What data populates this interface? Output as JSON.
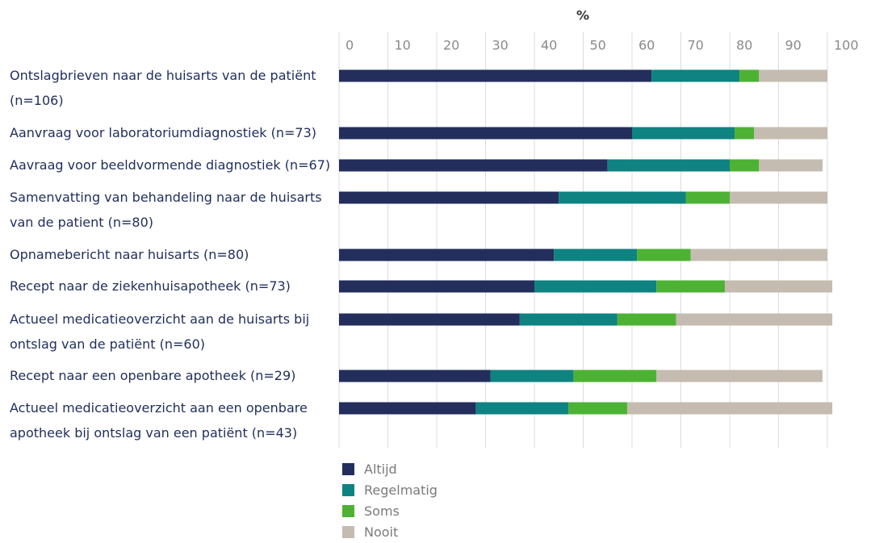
{
  "chart_data": {
    "type": "stacked-bar-horizontal",
    "title": "%",
    "categories": [
      "Ontslagbrieven naar de huisarts van de patiënt (n=106)",
      "Aanvraag voor laboratoriumdiagnostiek (n=73)",
      "Aavraag voor beeldvormende diagnostiek (n=67)",
      "Samenvatting van behandeling naar de huisarts van de patient (n=80)",
      "Opnamebericht naar huisarts (n=80)",
      "Recept naar de ziekenhuisapotheek (n=73)",
      "Actueel medicatieoverzicht aan de huisarts bij ontslag van de patiënt (n=60)",
      "Recept naar een openbare apotheek (n=29)",
      "Actueel medicatieoverzicht aan een openbare apotheek bij ontslag van een patiënt (n=43)"
    ],
    "series": [
      {
        "name": "Altijd",
        "color": "#232e5c",
        "values": [
          64,
          60,
          55,
          45,
          44,
          40,
          37,
          31,
          28
        ]
      },
      {
        "name": "Regelmatig",
        "color": "#0e8381",
        "values": [
          18,
          21,
          25,
          26,
          17,
          25,
          20,
          17,
          19
        ]
      },
      {
        "name": "Soms",
        "color": "#4db234",
        "values": [
          4,
          4,
          6,
          9,
          11,
          14,
          12,
          17,
          12
        ]
      },
      {
        "name": "Nooit",
        "color": "#c4bcb0",
        "values": [
          14,
          15,
          13,
          20,
          28,
          22,
          32,
          34,
          42
        ]
      }
    ],
    "xlim": [
      0,
      100
    ],
    "xticks": [
      0,
      10,
      20,
      30,
      40,
      50,
      60,
      70,
      80,
      90,
      100
    ],
    "grid": true
  }
}
